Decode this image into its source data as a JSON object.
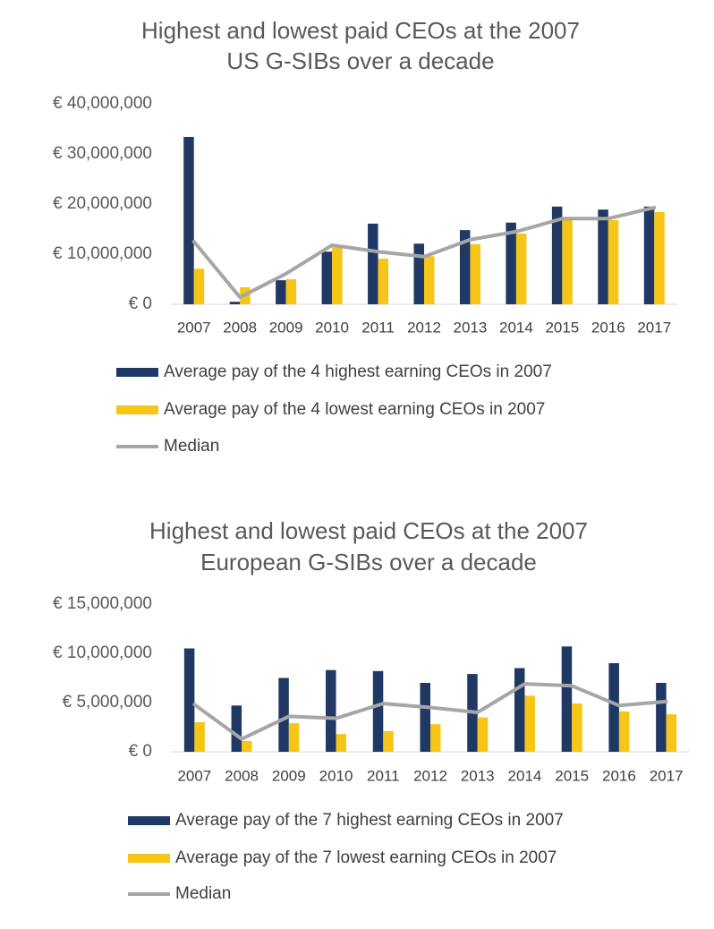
{
  "chart_data": [
    {
      "type": "bar",
      "title": [
        "Highest and lowest paid CEOs at the 2007",
        "US G-SIBs over a decade"
      ],
      "categories": [
        "2007",
        "2008",
        "2009",
        "2010",
        "2011",
        "2012",
        "2013",
        "2014",
        "2015",
        "2016",
        "2017"
      ],
      "series": [
        {
          "name": "Average pay of the 4 highest earning CEOs in 2007",
          "color": "#1f3864",
          "type": "bar",
          "values": [
            33400000,
            500000,
            4800000,
            10500000,
            16100000,
            12100000,
            14800000,
            16300000,
            19500000,
            18900000,
            19500000
          ]
        },
        {
          "name": "Average pay of the 4 lowest earning CEOs in 2007",
          "color": "#f5c518",
          "type": "bar",
          "values": [
            7100000,
            3400000,
            5000000,
            11400000,
            9100000,
            9600000,
            12000000,
            14100000,
            16800000,
            16800000,
            18400000
          ]
        },
        {
          "name": "Median",
          "color": "#a6a6a6",
          "type": "line",
          "values": [
            12500000,
            1400000,
            6100000,
            11800000,
            10500000,
            9500000,
            12900000,
            14500000,
            17100000,
            17100000,
            19300000
          ]
        }
      ],
      "ylim": [
        0,
        40000000
      ],
      "yticks": [
        {
          "value": 0,
          "label": "€ 0"
        },
        {
          "value": 10000000,
          "label": "€ 10,000,000"
        },
        {
          "value": 20000000,
          "label": "€ 20,000,000"
        },
        {
          "value": 30000000,
          "label": "€ 30,000,000"
        },
        {
          "value": 40000000,
          "label": "€ 40,000,000"
        }
      ],
      "grid": false,
      "legend": "bottom"
    },
    {
      "type": "bar",
      "title": [
        "Highest and lowest paid CEOs at the 2007",
        "European G-SIBs over a decade"
      ],
      "categories": [
        "2007",
        "2008",
        "2009",
        "2010",
        "2011",
        "2012",
        "2013",
        "2014",
        "2015",
        "2016",
        "2017"
      ],
      "series": [
        {
          "name": "Average pay of the 7 highest earning CEOs in 2007",
          "color": "#1f3864",
          "type": "bar",
          "values": [
            10500000,
            4700000,
            7500000,
            8300000,
            8200000,
            7000000,
            7900000,
            8500000,
            10700000,
            9000000,
            7000000
          ]
        },
        {
          "name": "Average pay of the 7 lowest earning CEOs in 2007",
          "color": "#f5c518",
          "type": "bar",
          "values": [
            3000000,
            1100000,
            2900000,
            1800000,
            2100000,
            2800000,
            3500000,
            5700000,
            4900000,
            4100000,
            3800000
          ]
        },
        {
          "name": "Median",
          "color": "#a6a6a6",
          "type": "line",
          "values": [
            4800000,
            1300000,
            3600000,
            3400000,
            4900000,
            4500000,
            4000000,
            6900000,
            6700000,
            4700000,
            5100000
          ]
        }
      ],
      "ylim": [
        0,
        15000000
      ],
      "yticks": [
        {
          "value": 0,
          "label": "€ 0"
        },
        {
          "value": 5000000,
          "label": "€ 5,000,000"
        },
        {
          "value": 10000000,
          "label": "€ 10,000,000"
        },
        {
          "value": 15000000,
          "label": "€ 15,000,000"
        }
      ],
      "grid": false,
      "legend": "bottom"
    }
  ]
}
